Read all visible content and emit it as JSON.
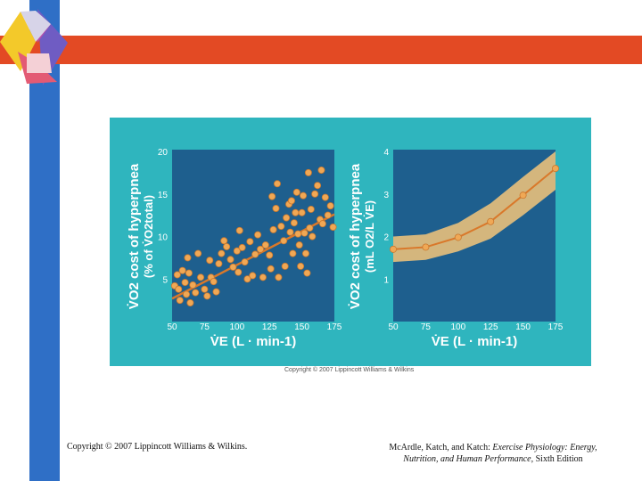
{
  "slide": {
    "caption_left": "Copyright © 2007 Lippincott Williams & Wilkins.",
    "caption_right_authors": "McArdle, Katch, and Katch: ",
    "caption_right_title": "Exercise Physiology: Energy, Nutrition, and Human Performance,",
    "caption_right_edition": " Sixth Edition",
    "figure_copyright": "Copyright © 2007 Lippincott Williams & Wilkins",
    "colors": {
      "blue_bar": "#2f6fc6",
      "red_band": "#e34a24",
      "chart_bg": "#2fb5be",
      "plot_bg": "#1e5f8e",
      "line": "#d9782a",
      "points": "#f0a855"
    }
  },
  "chart_data": [
    {
      "type": "scatter",
      "title": "",
      "ylabel_main": "V̇O2 cost of hyperpnea",
      "ylabel_sub": "(% of V̇O2total)",
      "xlabel": "V̇E (L · min-1)",
      "xlim": [
        50,
        175
      ],
      "ylim": [
        0,
        20
      ],
      "x_ticks": [
        "50",
        "75",
        "100",
        "125",
        "150",
        "175"
      ],
      "y_ticks": [
        "5",
        "10",
        "15",
        "20"
      ],
      "trend_line": {
        "x": [
          50,
          175
        ],
        "y": [
          2.7,
          12.6
        ]
      },
      "points": [
        [
          52,
          4.2
        ],
        [
          54,
          5.5
        ],
        [
          55,
          3.8
        ],
        [
          56,
          2.5
        ],
        [
          58,
          6.0
        ],
        [
          60,
          4.6
        ],
        [
          61,
          3.2
        ],
        [
          62,
          7.5
        ],
        [
          63,
          5.7
        ],
        [
          64,
          2.2
        ],
        [
          66,
          4.3
        ],
        [
          68,
          3.4
        ],
        [
          70,
          8.0
        ],
        [
          72,
          5.2
        ],
        [
          75,
          3.8
        ],
        [
          77,
          3.0
        ],
        [
          79,
          7.2
        ],
        [
          80,
          5.2
        ],
        [
          82,
          4.7
        ],
        [
          84,
          3.5
        ],
        [
          86,
          6.8
        ],
        [
          88,
          8.0
        ],
        [
          90,
          9.5
        ],
        [
          92,
          8.8
        ],
        [
          95,
          7.3
        ],
        [
          97,
          6.4
        ],
        [
          100,
          8.3
        ],
        [
          101,
          5.8
        ],
        [
          102,
          10.7
        ],
        [
          104,
          8.7
        ],
        [
          106,
          7.0
        ],
        [
          108,
          5.0
        ],
        [
          110,
          9.4
        ],
        [
          112,
          5.4
        ],
        [
          114,
          7.9
        ],
        [
          116,
          10.2
        ],
        [
          118,
          8.5
        ],
        [
          120,
          5.2
        ],
        [
          122,
          9.0
        ],
        [
          125,
          7.8
        ],
        [
          126,
          6.2
        ],
        [
          127,
          14.7
        ],
        [
          128,
          10.8
        ],
        [
          130,
          13.3
        ],
        [
          131,
          16.2
        ],
        [
          132,
          5.2
        ],
        [
          134,
          11.2
        ],
        [
          136,
          9.5
        ],
        [
          137,
          6.5
        ],
        [
          138,
          12.2
        ],
        [
          140,
          13.8
        ],
        [
          141,
          10.5
        ],
        [
          142,
          14.2
        ],
        [
          143,
          8.0
        ],
        [
          144,
          11.6
        ],
        [
          145,
          12.8
        ],
        [
          146,
          15.2
        ],
        [
          147,
          10.3
        ],
        [
          148,
          9.0
        ],
        [
          149,
          6.5
        ],
        [
          150,
          12.8
        ],
        [
          151,
          14.8
        ],
        [
          152,
          10.4
        ],
        [
          153,
          8.0
        ],
        [
          154,
          5.7
        ],
        [
          155,
          17.5
        ],
        [
          156,
          11.0
        ],
        [
          157,
          13.2
        ],
        [
          158,
          10.0
        ],
        [
          160,
          15.0
        ],
        [
          162,
          16.0
        ],
        [
          164,
          12.0
        ],
        [
          165,
          17.8
        ],
        [
          166,
          11.5
        ],
        [
          168,
          14.6
        ],
        [
          170,
          12.5
        ],
        [
          172,
          13.6
        ],
        [
          174,
          11.1
        ]
      ]
    },
    {
      "type": "line",
      "title": "",
      "ylabel_main": "V̇O2 cost of hyperpnea",
      "ylabel_sub": "(mL O2/L V̇E)",
      "xlabel": "V̇E (L · min-1)",
      "xlim": [
        50,
        175
      ],
      "ylim": [
        0,
        4
      ],
      "x_ticks": [
        "50",
        "75",
        "100",
        "125",
        "150",
        "175"
      ],
      "y_ticks": [
        "1",
        "2",
        "3",
        "4"
      ],
      "x": [
        50,
        75,
        100,
        125,
        150,
        175
      ],
      "y": [
        1.7,
        1.75,
        1.98,
        2.35,
        2.97,
        3.6
      ],
      "band_upper": [
        2.0,
        2.05,
        2.32,
        2.78,
        3.4,
        4.0
      ],
      "band_lower": [
        1.4,
        1.45,
        1.65,
        1.95,
        2.5,
        3.1
      ]
    }
  ]
}
